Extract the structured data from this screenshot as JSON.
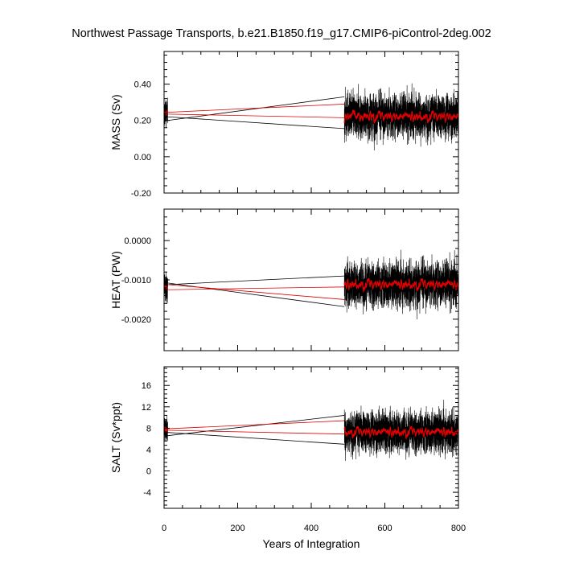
{
  "chart_data": {
    "type": "line",
    "title": "Northwest Passage Transports, b.e21.B1850.f19_g17.CMIP6-piControl-2deg.002",
    "xlabel": "Years of Integration",
    "x_ticks": [
      "0",
      "200",
      "400",
      "600",
      "800"
    ],
    "xlim": [
      0,
      800
    ],
    "panels": [
      {
        "ylabel": "MASS (Sv)",
        "ylim": [
          -0.2,
          0.58
        ],
        "y_ticks": [
          {
            "value": 0.4,
            "label": "0.40"
          },
          {
            "value": 0.2,
            "label": "0.20"
          },
          {
            "value": 0.0,
            "label": "0.00"
          },
          {
            "value": -0.2,
            "label": "-0.20"
          }
        ],
        "segments": [
          {
            "x_start": 0,
            "x_end": 10,
            "mean": 0.24,
            "spread": 0.12
          },
          {
            "x_start": 490,
            "x_end": 800,
            "mean": 0.225,
            "spread": 0.2
          }
        ],
        "connector_lines": [
          {
            "color": "black",
            "from": [
              10,
              0.2
            ],
            "to": [
              490,
              0.33
            ]
          },
          {
            "color": "black",
            "from": [
              10,
              0.22
            ],
            "to": [
              490,
              0.155
            ]
          },
          {
            "color": "red",
            "from": [
              10,
              0.245
            ],
            "to": [
              490,
              0.29
            ]
          },
          {
            "color": "red",
            "from": [
              10,
              0.235
            ],
            "to": [
              490,
              0.215
            ]
          }
        ]
      },
      {
        "ylabel": "HEAT (PW)",
        "ylim": [
          -0.0028,
          0.0008
        ],
        "y_ticks": [
          {
            "value": 0.0,
            "label": "0.0000"
          },
          {
            "value": -0.001,
            "label": "-0.0010"
          },
          {
            "value": -0.002,
            "label": "-0.0020"
          }
        ],
        "segments": [
          {
            "x_start": 0,
            "x_end": 10,
            "mean": -0.0012,
            "spread": 0.0006
          },
          {
            "x_start": 490,
            "x_end": 800,
            "mean": -0.0011,
            "spread": 0.00095
          }
        ],
        "connector_lines": [
          {
            "color": "black",
            "from": [
              10,
              -0.00108
            ],
            "to": [
              490,
              -0.00168
            ]
          },
          {
            "color": "black",
            "from": [
              10,
              -0.00112
            ],
            "to": [
              490,
              -0.0009
            ]
          },
          {
            "color": "red",
            "from": [
              10,
              -0.00125
            ],
            "to": [
              490,
              -0.00118
            ]
          },
          {
            "color": "red",
            "from": [
              10,
              -0.00112
            ],
            "to": [
              490,
              -0.0015
            ]
          }
        ]
      },
      {
        "ylabel": "SALT (Sv*ppt)",
        "ylim": [
          -7,
          19.5
        ],
        "y_ticks": [
          {
            "value": 16,
            "label": "16"
          },
          {
            "value": 12,
            "label": "12"
          },
          {
            "value": 8,
            "label": "8"
          },
          {
            "value": 4,
            "label": "4"
          },
          {
            "value": 0,
            "label": "0"
          },
          {
            "value": -4,
            "label": "-4"
          }
        ],
        "segments": [
          {
            "x_start": 0,
            "x_end": 10,
            "mean": 7.8,
            "spread": 4.0
          },
          {
            "x_start": 490,
            "x_end": 800,
            "mean": 7.4,
            "spread": 6.5
          }
        ],
        "connector_lines": [
          {
            "color": "black",
            "from": [
              10,
              6.6
            ],
            "to": [
              490,
              10.4
            ]
          },
          {
            "color": "black",
            "from": [
              10,
              7.2
            ],
            "to": [
              490,
              5.0
            ]
          },
          {
            "color": "red",
            "from": [
              10,
              7.9
            ],
            "to": [
              490,
              9.4
            ]
          },
          {
            "color": "red",
            "from": [
              10,
              7.6
            ],
            "to": [
              490,
              6.9
            ]
          }
        ]
      }
    ]
  }
}
